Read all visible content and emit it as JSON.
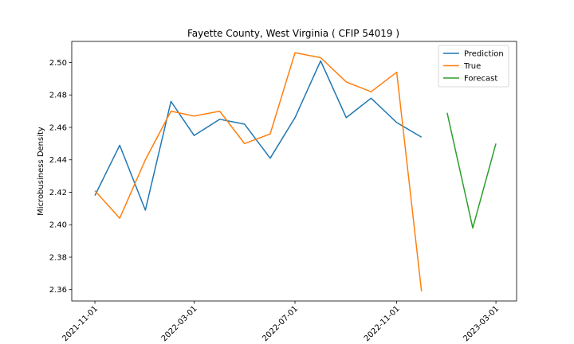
{
  "chart_data": {
    "type": "line",
    "title": "Fayette County, West Virginia ( CFIP 54019 )",
    "xlabel": "",
    "ylabel": "Microbusiness Density",
    "x_ticks": [
      "2021-11-01",
      "2022-03-01",
      "2022-07-01",
      "2022-11-01",
      "2023-03-01"
    ],
    "y_ticks": [
      2.36,
      2.38,
      2.4,
      2.42,
      2.44,
      2.46,
      2.48,
      2.5
    ],
    "ylim": [
      2.353,
      2.513
    ],
    "xlim": [
      "2021-10-04",
      "2023-03-26"
    ],
    "legend_position": "top-right",
    "grid": false,
    "series": [
      {
        "name": "Prediction",
        "color": "#1f77b4",
        "x": [
          "2021-11-01",
          "2021-12-01",
          "2022-01-01",
          "2022-02-01",
          "2022-03-01",
          "2022-04-01",
          "2022-05-01",
          "2022-06-01",
          "2022-07-01",
          "2022-08-01",
          "2022-09-01",
          "2022-10-01",
          "2022-11-01",
          "2022-12-01"
        ],
        "y": [
          2.418,
          2.449,
          2.409,
          2.476,
          2.455,
          2.465,
          2.462,
          2.441,
          2.466,
          2.501,
          2.466,
          2.478,
          2.463,
          2.454
        ]
      },
      {
        "name": "True",
        "color": "#ff7f0e",
        "x": [
          "2021-11-01",
          "2021-12-01",
          "2022-01-01",
          "2022-02-01",
          "2022-03-01",
          "2022-04-01",
          "2022-05-01",
          "2022-06-01",
          "2022-07-01",
          "2022-08-01",
          "2022-09-01",
          "2022-10-01",
          "2022-11-01",
          "2022-12-01"
        ],
        "y": [
          2.421,
          2.404,
          2.44,
          2.47,
          2.467,
          2.47,
          2.45,
          2.456,
          2.506,
          2.503,
          2.488,
          2.482,
          2.494,
          2.359
        ]
      },
      {
        "name": "Forecast",
        "color": "#2ca02c",
        "x": [
          "2023-01-01",
          "2023-02-01",
          "2023-03-01"
        ],
        "y": [
          2.469,
          2.398,
          2.45
        ]
      }
    ]
  }
}
